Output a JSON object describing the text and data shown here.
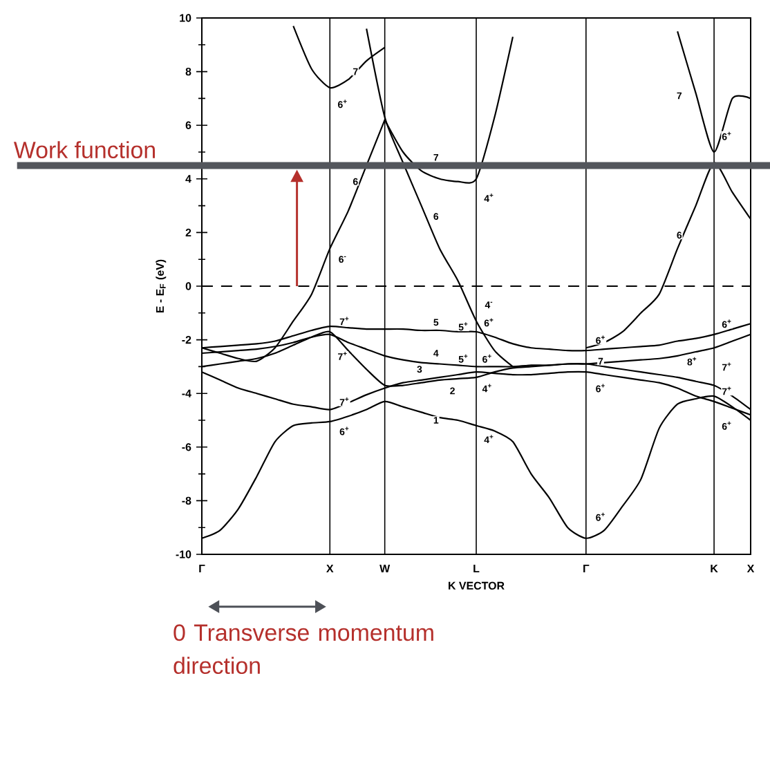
{
  "chart_data": {
    "type": "line",
    "xlabel": "K VECTOR",
    "ylabel": "E - E$_{F}$ (eV)",
    "ylim": [
      -10,
      10
    ],
    "categories": [
      "Γ",
      null,
      null,
      null,
      null,
      null,
      null,
      "X",
      null,
      null,
      "W",
      null,
      null,
      null,
      null,
      "L",
      null,
      null,
      null,
      null,
      null,
      "Γ",
      null,
      null,
      null,
      null,
      null,
      null,
      "K",
      null,
      "X"
    ],
    "yticks": [
      -10,
      -8,
      -6,
      -4,
      -2,
      0,
      2,
      4,
      6,
      8,
      10
    ],
    "grid": "x",
    "marker": "none",
    "line_style": "solid",
    "series": [
      {
        "color": "#000000",
        "values": [
          -9.4,
          -9.1,
          -8.3,
          -7.1,
          -5.8,
          -5.2,
          -5.1,
          -5.05,
          -4.85,
          -4.6,
          -4.3,
          -4.5,
          -4.7,
          -4.9,
          -5.0,
          -5.2,
          -5.4,
          -5.8,
          -7.0,
          -7.9,
          -9.0,
          -9.4,
          -9.1,
          -8.2,
          -7.2,
          -5.3,
          -4.4,
          -4.2,
          -4.1,
          -4.5,
          -5.0
        ]
      },
      {
        "color": "#000000",
        "values": [
          -3.2,
          -3.5,
          -3.8,
          -4.0,
          -4.2,
          -4.4,
          -4.5,
          -4.6,
          -4.35,
          -4.05,
          -3.8,
          -3.6,
          -3.5,
          -3.4,
          -3.3,
          -3.2,
          -3.25,
          -3.3,
          -3.3,
          -3.25,
          -3.2,
          -3.2,
          -3.3,
          -3.4,
          -3.5,
          -3.6,
          -3.8,
          -4.1,
          -4.3,
          -4.55,
          -4.8
        ]
      },
      {
        "color": "#000000",
        "values": [
          -3.0,
          -2.9,
          -2.8,
          -2.7,
          -2.5,
          -2.2,
          -1.9,
          -1.7,
          -2.4,
          -3.1,
          -3.7,
          -3.7,
          -3.6,
          -3.5,
          -3.45,
          -3.4,
          -3.2,
          -3.05,
          -3.0,
          -2.95,
          -2.9,
          -2.9,
          -3.0,
          -3.1,
          -3.2,
          -3.3,
          -3.4,
          -3.55,
          -3.7,
          -4.1,
          -4.6
        ]
      },
      {
        "color": "#000000",
        "values": [
          -2.5,
          -2.45,
          -2.4,
          -2.35,
          -2.25,
          -2.1,
          -1.9,
          -1.8,
          -2.1,
          -2.35,
          -2.6,
          -2.75,
          -2.85,
          -2.9,
          -2.95,
          -3.0,
          -3.0,
          -3.0,
          -2.95,
          -2.95,
          -2.9,
          -2.9,
          -2.85,
          -2.8,
          -2.75,
          -2.7,
          -2.6,
          -2.45,
          -2.3,
          -2.05,
          -1.8
        ]
      },
      {
        "color": "#000000",
        "values": [
          -2.3,
          -2.25,
          -2.2,
          -2.15,
          -2.05,
          -1.85,
          -1.65,
          -1.5,
          -1.55,
          -1.6,
          -1.6,
          -1.6,
          -1.65,
          -1.65,
          -1.7,
          -1.7,
          -1.9,
          -2.15,
          -2.3,
          -2.35,
          -2.4,
          -2.4,
          -2.35,
          -2.3,
          -2.25,
          -2.2,
          -2.05,
          -1.95,
          -1.8,
          -1.6,
          -1.4
        ]
      },
      {
        "color": "#000000",
        "values": [
          -2.3,
          -2.5,
          -2.7,
          -2.8,
          -2.3,
          -1.3,
          -0.3,
          1.4,
          2.8,
          4.5,
          6.2,
          null,
          null,
          null,
          null,
          null,
          null,
          null,
          null,
          null,
          null,
          null,
          null,
          null,
          null,
          null,
          null,
          null,
          null,
          null,
          null
        ]
      },
      {
        "color": "#000000",
        "values": [
          null,
          null,
          null,
          null,
          null,
          null,
          null,
          null,
          null,
          9.6,
          6.3,
          4.6,
          3.0,
          1.4,
          0.2,
          -1.3,
          -2.4,
          -3.0,
          null,
          null,
          null,
          null,
          null,
          null,
          null,
          null,
          null,
          null,
          null,
          null,
          null
        ]
      },
      {
        "color": "#000000",
        "values": [
          null,
          null,
          null,
          null,
          null,
          null,
          null,
          null,
          null,
          null,
          6.2,
          5.0,
          4.3,
          4.0,
          3.9,
          4.0,
          6.3,
          9.3,
          null,
          null,
          null,
          null,
          null,
          null,
          null,
          null,
          null,
          null,
          null,
          null,
          null
        ]
      },
      {
        "color": "#000000",
        "values": [
          null,
          null,
          null,
          null,
          null,
          9.7,
          8.1,
          7.4,
          7.7,
          8.4,
          8.9,
          null,
          null,
          null,
          null,
          null,
          null,
          null,
          null,
          null,
          null,
          null,
          null,
          null,
          null,
          null,
          null,
          null,
          null,
          null,
          null
        ]
      },
      {
        "color": "#000000",
        "values": [
          null,
          null,
          null,
          null,
          null,
          null,
          null,
          null,
          null,
          null,
          null,
          null,
          null,
          null,
          null,
          null,
          null,
          null,
          null,
          null,
          null,
          -2.3,
          -2.1,
          -1.7,
          -1.0,
          -0.3,
          1.4,
          3.0,
          4.6,
          3.5,
          2.5
        ]
      },
      {
        "color": "#000000",
        "values": [
          null,
          null,
          null,
          null,
          null,
          null,
          null,
          null,
          null,
          null,
          null,
          null,
          null,
          null,
          null,
          null,
          null,
          null,
          null,
          null,
          null,
          null,
          null,
          null,
          null,
          null,
          9.5,
          7.2,
          5.0,
          7.0,
          7.0
        ]
      }
    ],
    "ref_lines": [
      {
        "axis": "y",
        "value": 4.5,
        "label": "Work function",
        "color": "#53565c"
      },
      {
        "axis": "y",
        "value": 0,
        "line_style": "dashed",
        "color": "#000000"
      }
    ],
    "annotations": [
      {
        "text": "7",
        "y": 8.0
      },
      {
        "text": "6$^{+}$",
        "y": 6.8
      },
      {
        "text": "6",
        "y": 3.9
      },
      {
        "text": "6$^{-}$",
        "y": 1.0
      },
      {
        "text": "7",
        "y": 4.8
      },
      {
        "text": "6",
        "y": 2.6
      },
      {
        "text": "4$^{+}$",
        "y": 3.3
      },
      {
        "text": "7",
        "y": 7.1
      },
      {
        "text": "6$^{+}$",
        "y": 5.6
      },
      {
        "text": "6",
        "y": 1.9
      },
      {
        "text": "7$^{+}$",
        "y": -1.3
      },
      {
        "text": "7$^{+}$",
        "y": -2.6
      },
      {
        "text": "7$^{+}$",
        "y": -4.3
      },
      {
        "text": "6$^{+}$",
        "y": -5.4
      },
      {
        "text": "5",
        "y": -1.35
      },
      {
        "text": "5$^{+}$",
        "y": -1.5
      },
      {
        "text": "4",
        "y": -2.5
      },
      {
        "text": "5$^{+}$",
        "y": -2.7
      },
      {
        "text": "3",
        "y": -3.1
      },
      {
        "text": "2",
        "y": -3.9
      },
      {
        "text": "1",
        "y": -5.0
      },
      {
        "text": "4$^{-}$",
        "y": -0.7
      },
      {
        "text": "6$^{+}$",
        "y": -1.35
      },
      {
        "text": "6$^{+}$",
        "y": -2.7
      },
      {
        "text": "4$^{+}$",
        "y": -3.8
      },
      {
        "text": "4$^{+}$",
        "y": -5.7
      },
      {
        "text": "6$^{+}$",
        "y": -2.0
      },
      {
        "text": "7",
        "y": -2.8
      },
      {
        "text": "6$^{+}$",
        "y": -3.8
      },
      {
        "text": "6$^{+}$",
        "y": -8.6
      },
      {
        "text": "8$^{+}$",
        "y": -2.8
      },
      {
        "text": "6$^{+}$",
        "y": -1.4
      },
      {
        "text": "7$^{+}$",
        "y": -3.0
      },
      {
        "text": "7$^{+}$",
        "y": -3.9
      },
      {
        "text": "6$^{+}$",
        "y": -5.2
      },
      "0 Transverse momentum direction"
    ]
  }
}
